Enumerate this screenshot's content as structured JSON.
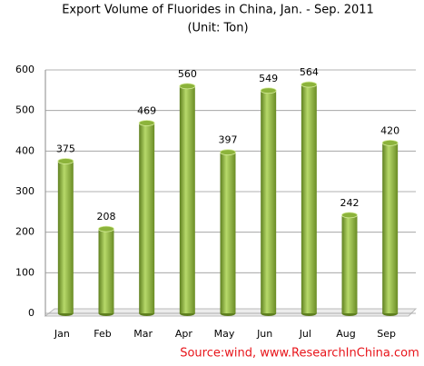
{
  "chart_data": {
    "type": "bar",
    "title": "Export Volume of Fluorides in China, Jan. - Sep. 2011",
    "subtitle": "(Unit: Ton)",
    "source": "Source:wind, www.ResearchInChina.com",
    "categories": [
      "Jan",
      "Feb",
      "Mar",
      "Apr",
      "May",
      "Jun",
      "Jul",
      "Aug",
      "Sep"
    ],
    "values": [
      375,
      208,
      469,
      560,
      397,
      549,
      564,
      242,
      420
    ],
    "color": "#8cb33b",
    "ylim": [
      0,
      600
    ],
    "yticks": [
      0,
      100,
      200,
      300,
      400,
      500,
      600
    ],
    "grid": true
  }
}
